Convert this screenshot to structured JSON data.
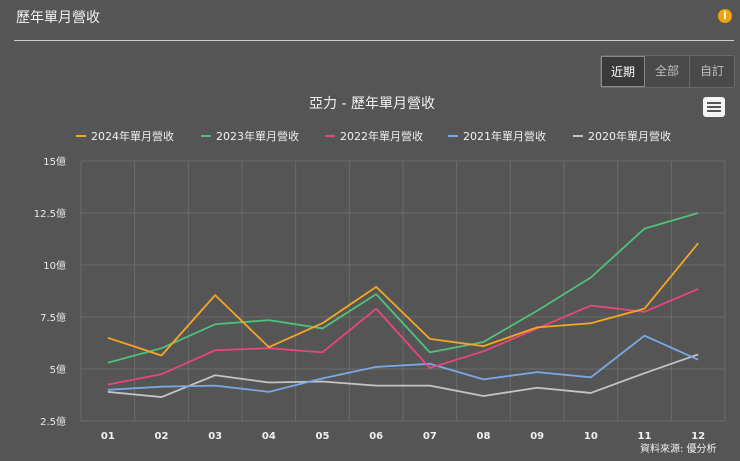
{
  "header": {
    "title": "歷年單月營收",
    "info_icon": "info-icon"
  },
  "range_buttons": [
    {
      "label": "近期",
      "active": true
    },
    {
      "label": "全部",
      "active": false
    },
    {
      "label": "自訂",
      "active": false
    }
  ],
  "menu_icon": "hamburger-menu-icon",
  "source": "資料來源: 優分析",
  "colors": {
    "accent": "#f0a30a",
    "background": "#555555",
    "grid": "#6b6b6b"
  },
  "chart_data": {
    "type": "line",
    "title": "亞力 - 歷年單月營收",
    "xlabel": "",
    "ylabel": "",
    "categories": [
      "01",
      "02",
      "03",
      "04",
      "05",
      "06",
      "07",
      "08",
      "09",
      "10",
      "11",
      "12"
    ],
    "yticks": [
      "2.5億",
      "5億",
      "7.5億",
      "10億",
      "12.5億",
      "15億"
    ],
    "ytick_values": [
      2.5,
      5,
      7.5,
      10,
      12.5,
      15
    ],
    "ylim": [
      2.5,
      15
    ],
    "grid": true,
    "legend_position": "top",
    "series": [
      {
        "name": "2024年單月營收",
        "color": "#f5a623",
        "values": [
          6.5,
          5.65,
          8.55,
          6.05,
          7.2,
          8.95,
          6.45,
          6.1,
          7.0,
          7.2,
          7.9,
          11.05
        ]
      },
      {
        "name": "2023年單月營收",
        "color": "#4fc17a",
        "values": [
          5.3,
          6.0,
          7.15,
          7.35,
          6.95,
          8.6,
          5.8,
          6.3,
          7.8,
          9.4,
          11.75,
          12.5
        ]
      },
      {
        "name": "2022年單月營收",
        "color": "#e8467c",
        "values": [
          4.25,
          4.75,
          5.9,
          6.0,
          5.8,
          7.9,
          5.05,
          5.85,
          6.95,
          8.05,
          7.75,
          8.85
        ]
      },
      {
        "name": "2021年單月營收",
        "color": "#7aa7e8",
        "values": [
          4.0,
          4.15,
          4.2,
          3.9,
          4.55,
          5.1,
          5.25,
          4.5,
          4.85,
          4.6,
          6.6,
          5.45
        ]
      },
      {
        "name": "2020年單月營收",
        "color": "#c4c4c4",
        "values": [
          3.9,
          3.65,
          4.7,
          4.35,
          4.4,
          4.2,
          4.2,
          3.7,
          4.1,
          3.85,
          4.8,
          5.7
        ]
      }
    ]
  }
}
